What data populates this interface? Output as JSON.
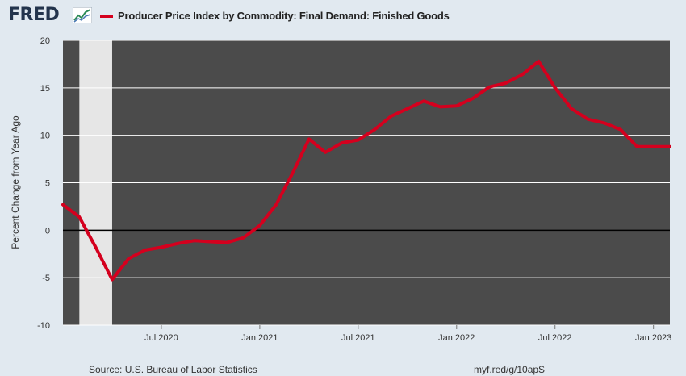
{
  "brand": {
    "logo_text": "FRED",
    "logo_mark": "chart-line-icon"
  },
  "legend": {
    "label": "Producer Price Index by Commodity: Final Demand: Finished Goods",
    "color": "#d4001e"
  },
  "footer": {
    "source": "Source: U.S. Bureau of Labor Statistics",
    "link": "myf.red/g/10apS"
  },
  "colors": {
    "plot_bg": "#4b4b4b",
    "page_bg": "#e1e9f0",
    "recession": "#e6e6e6",
    "grid": "#ffffff",
    "zero_line": "#000000"
  },
  "chart_data": {
    "type": "line",
    "ylabel": "Percent Change from Year Ago",
    "ylim": [
      -10,
      20
    ],
    "yticks": [
      20,
      15,
      10,
      5,
      0,
      -5,
      -10
    ],
    "xticks": [
      "Jul 2020",
      "Jan 2021",
      "Jul 2021",
      "Jan 2022",
      "Jul 2022",
      "Jan 2023"
    ],
    "xlim": [
      "2020-01",
      "2023-02"
    ],
    "grid": true,
    "recession": {
      "start": "2020-02",
      "end": "2020-04"
    },
    "series": [
      {
        "color": "#d4001e",
        "x": [
          "2020-01",
          "2020-02",
          "2020-03",
          "2020-04",
          "2020-05",
          "2020-06",
          "2020-07",
          "2020-08",
          "2020-09",
          "2020-10",
          "2020-11",
          "2020-12",
          "2021-01",
          "2021-02",
          "2021-03",
          "2021-04",
          "2021-05",
          "2021-06",
          "2021-07",
          "2021-08",
          "2021-09",
          "2021-10",
          "2021-11",
          "2021-12",
          "2022-01",
          "2022-02",
          "2022-03",
          "2022-04",
          "2022-05",
          "2022-06",
          "2022-07",
          "2022-08",
          "2022-09",
          "2022-10",
          "2022-11",
          "2022-12",
          "2023-01",
          "2023-02"
        ],
        "values": [
          2.7,
          1.4,
          -1.8,
          -5.2,
          -3.0,
          -2.1,
          -1.8,
          -1.4,
          -1.1,
          -1.2,
          -1.3,
          -0.8,
          0.5,
          2.7,
          6.0,
          9.6,
          8.2,
          9.2,
          9.5,
          10.6,
          12.0,
          12.8,
          13.6,
          13.0,
          13.1,
          13.9,
          15.1,
          15.5,
          16.4,
          17.8,
          15.0,
          12.8,
          11.7,
          11.3,
          10.6,
          8.8,
          8.8,
          8.8
        ]
      }
    ]
  }
}
